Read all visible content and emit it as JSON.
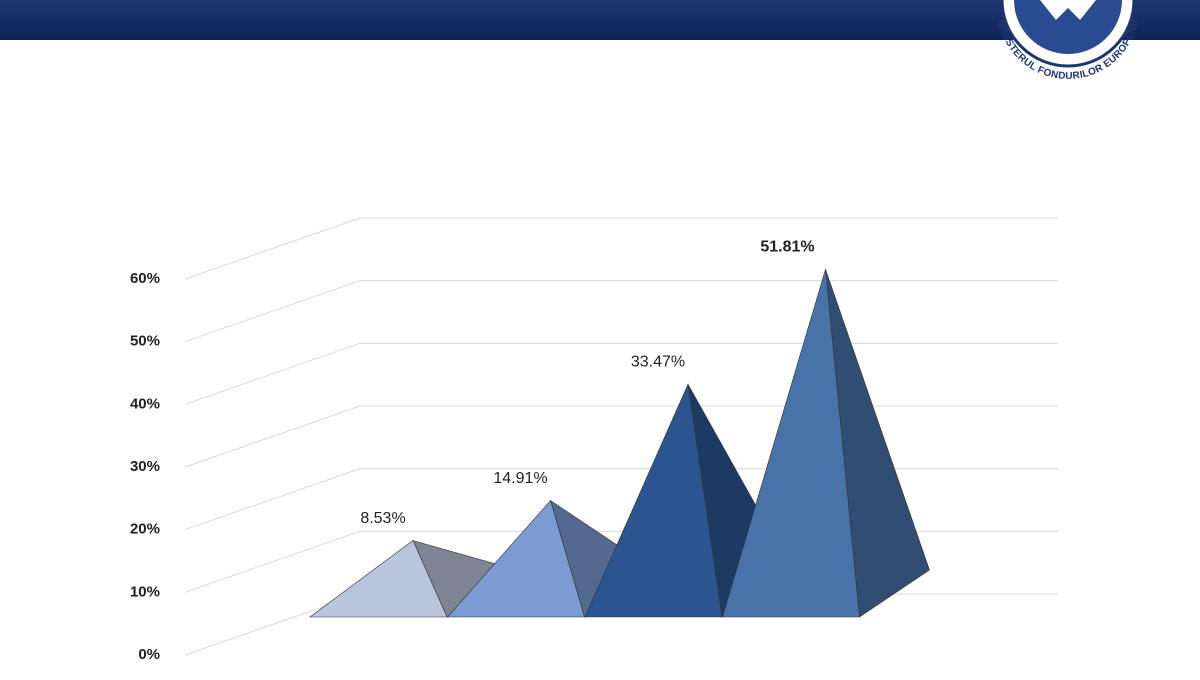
{
  "logo_text": "MINISTERUL FONDURILOR EUROPENE",
  "chart_data": {
    "type": "pyramid",
    "categories": [
      null,
      null,
      null,
      null
    ],
    "values": [
      8.53,
      14.91,
      33.47,
      51.81
    ],
    "value_labels": [
      "8.53%",
      "14.91%",
      "33.47%",
      "51.81%"
    ],
    "colors": [
      "#b9c5dd",
      "#7b9bd2",
      "#2b5590",
      "#4873a8"
    ],
    "ylim": [
      0,
      60
    ],
    "yticks": [
      {
        "value": 0,
        "label": "0%"
      },
      {
        "value": 10,
        "label": "10%"
      },
      {
        "value": 20,
        "label": "20%"
      },
      {
        "value": 30,
        "label": "30%"
      },
      {
        "value": 40,
        "label": "40%"
      },
      {
        "value": 50,
        "label": "50%"
      },
      {
        "value": 60,
        "label": "60%"
      }
    ],
    "grid": true
  }
}
